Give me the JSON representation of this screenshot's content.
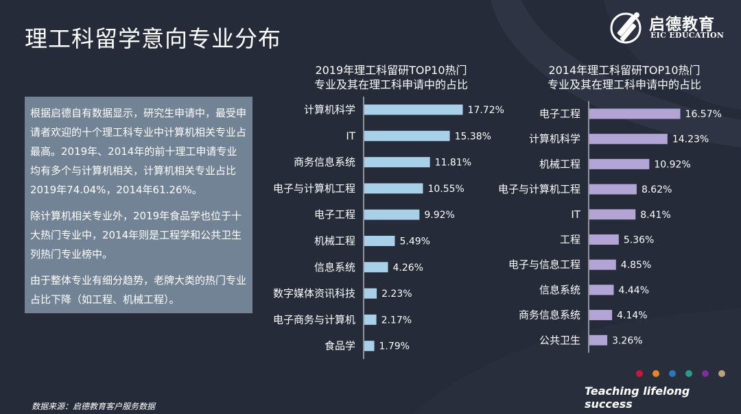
{
  "slide": {
    "title": "理工科留学意向专业分布",
    "description": [
      "根据启德自有数据显示，研究生申请中，最受申请者欢迎的十个理工科专业中计算机相关专业占最高。2019年、2014年的前十理工申请专业均有多个与计算机相关，计算机相关专业占比2019年74.04%，2014年61.26%。",
      "除计算机相关专业外，2019年食品学也位于十大热门专业中，2014年则是工程学和公共卫生列热门专业榜中。",
      "由于整体专业有细分趋势，老牌大类的热门专业占比下降（如工程、机械工程）。"
    ],
    "source": "数据来源：启德教育客户服务数据",
    "slogan": "Teaching lifelong success"
  },
  "brand": {
    "name": "启德教育",
    "sub": "EIC EDUCATION"
  },
  "colors": {
    "background": "#252b38",
    "text_box": "#738396",
    "bar_2019": "#a9d0e9",
    "bar_2014": "#b2a5d6",
    "axis_line": "#ffffff",
    "dots": [
      "#c8173d",
      "#e8832a",
      "#2a78b8",
      "#2a9a8a",
      "#7b2f9b",
      "#b7a27a"
    ]
  },
  "chart_data": [
    {
      "type": "bar",
      "orientation": "horizontal",
      "title": "2019年理工科留研TOP10热门专业及其在理工科申请中的占比",
      "title_lines": [
        "2019年理工科留研TOP10热门",
        "专业及其在理工科申请中的占比"
      ],
      "categories": [
        "计算机科学",
        "IT",
        "商务信息系统",
        "电子与计算机工程",
        "电子工程",
        "机械工程",
        "信息系统",
        "数字媒体资讯科技",
        "电子商务与计算机",
        "食品学"
      ],
      "values": [
        17.72,
        15.38,
        11.81,
        10.55,
        9.92,
        5.49,
        4.26,
        2.23,
        2.17,
        1.79
      ],
      "labels": [
        "17.72%",
        "15.38%",
        "11.81%",
        "10.55%",
        "9.92%",
        "5.49%",
        "4.26%",
        "2.23%",
        "2.17%",
        "1.79%"
      ],
      "unit": "%",
      "xlim": [
        0,
        20
      ],
      "grid": false,
      "legend": "none"
    },
    {
      "type": "bar",
      "orientation": "horizontal",
      "title": "2014年理工科留研TOP10热门专业及其在理工科申请中的占比",
      "title_lines": [
        "2014年理工科留研TOP10热门",
        "专业及其在理工科申请中的占比"
      ],
      "categories": [
        "电子工程",
        "计算机科学",
        "机械工程",
        "电子与计算机工程",
        "IT",
        "工程",
        "电子与信息工程",
        "信息系统",
        "商务信息系统",
        "公共卫生"
      ],
      "values": [
        16.57,
        14.23,
        10.92,
        8.62,
        8.41,
        5.36,
        4.85,
        4.44,
        4.14,
        3.26
      ],
      "labels": [
        "16.57%",
        "14.23%",
        "10.92%",
        "8.62%",
        "8.41%",
        "5.36%",
        "4.85%",
        "4.44%",
        "4.14%",
        "3.26%"
      ],
      "unit": "%",
      "xlim": [
        0,
        20
      ],
      "grid": false,
      "legend": "none"
    }
  ]
}
